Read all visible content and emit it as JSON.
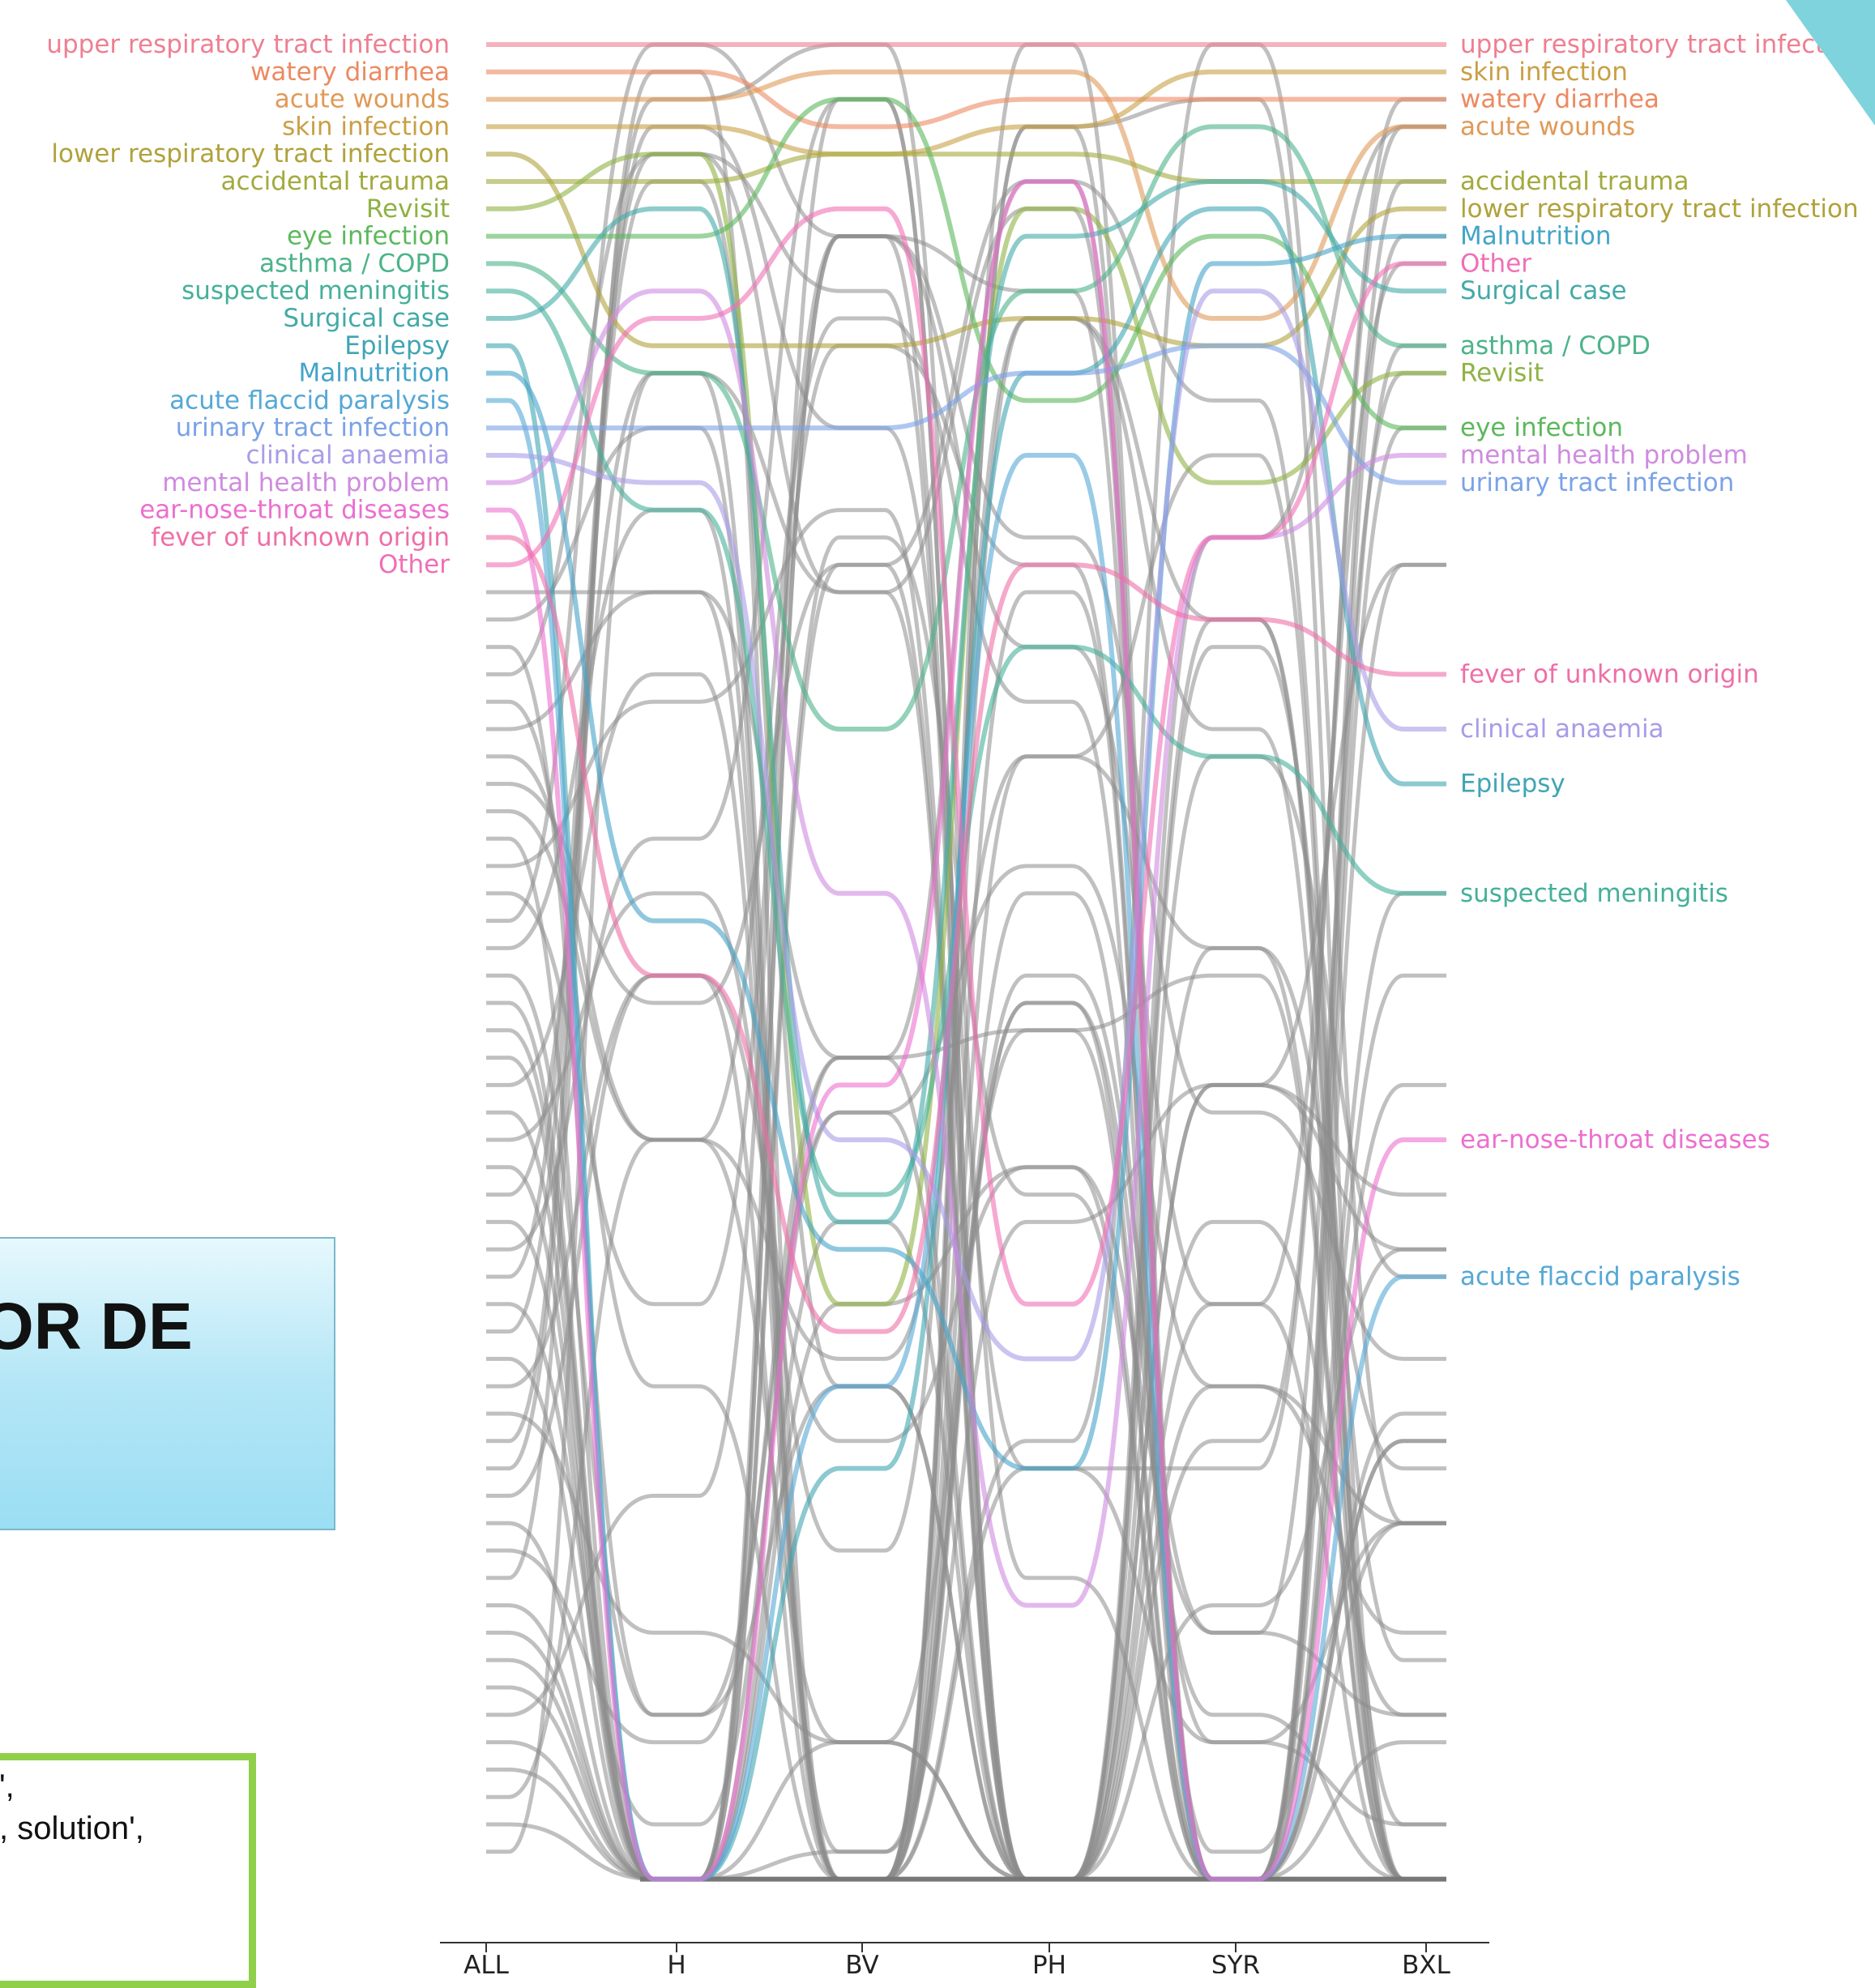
{
  "slide": {
    "box_text": "OR DE",
    "code_lines": [
      "',",
      ", solution',"
    ]
  },
  "colors": {
    "other": "#8c8c8c",
    "box_border": "#7ab8cc",
    "code_border": "#8fcf4a",
    "corner": "#7fd3dc"
  },
  "chart_data": {
    "type": "bump",
    "columns": [
      "ALL",
      "H",
      "BV",
      "PH",
      "SYR",
      "BXL"
    ],
    "max_rank": 67,
    "sink_rank": 68,
    "highlighted": [
      {
        "name": "upper respiratory tract infection",
        "color": "#ee7f92",
        "label_left": "upper respiratory tract infection",
        "label_right": "upper respiratory tract infection",
        "ranks": [
          1,
          1,
          1,
          1,
          1,
          1
        ]
      },
      {
        "name": "watery diarrhea",
        "color": "#ec8a62",
        "label_left": "watery diarrhea",
        "label_right": "watery diarrhea",
        "ranks": [
          2,
          2,
          4,
          3,
          3,
          3
        ]
      },
      {
        "name": "acute wounds",
        "color": "#e09a58",
        "label_left": "acute wounds",
        "label_right": "acute wounds",
        "ranks": [
          3,
          3,
          2,
          2,
          11,
          4
        ]
      },
      {
        "name": "skin infection",
        "color": "#c8a045",
        "label_left": "skin infection",
        "label_right": "skin infection",
        "ranks": [
          4,
          4,
          5,
          4,
          2,
          2
        ]
      },
      {
        "name": "lower respiratory tract infection",
        "color": "#b0a23c",
        "label_left": "lower respiratory tract infection",
        "label_right": "lower respiratory tract infection",
        "ranks": [
          5,
          12,
          12,
          11,
          12,
          7
        ]
      },
      {
        "name": "accidental trauma",
        "color": "#a3aa3e",
        "label_left": "accidental trauma",
        "label_right": "accidental trauma",
        "ranks": [
          6,
          6,
          5,
          5,
          6,
          6
        ]
      },
      {
        "name": "Revisit",
        "color": "#8fb243",
        "label_left": "Revisit",
        "label_right": "Revisit",
        "ranks": [
          7,
          5,
          47,
          7,
          17,
          13
        ]
      },
      {
        "name": "eye infection",
        "color": "#5cb85c",
        "label_left": "eye infection",
        "label_right": "eye infection",
        "ranks": [
          8,
          8,
          3,
          14,
          8,
          15
        ]
      },
      {
        "name": "asthma / COPD",
        "color": "#4db38a",
        "label_left": "asthma / COPD",
        "label_right": "asthma / COPD",
        "ranks": [
          9,
          13,
          26,
          10,
          4,
          12
        ]
      },
      {
        "name": "suspected meningitis",
        "color": "#45b09a",
        "label_left": "suspected meningitis",
        "label_right": "suspected meningitis",
        "ranks": [
          10,
          18,
          43,
          23,
          27,
          32
        ]
      },
      {
        "name": "Surgical case",
        "color": "#43aaa8",
        "label_left": "Surgical case",
        "label_right": "Surgical case",
        "ranks": [
          11,
          7,
          44,
          8,
          6,
          10
        ]
      },
      {
        "name": "Epilepsy",
        "color": "#40a5b3",
        "label_left": "Epilepsy",
        "label_right": "Epilepsy",
        "ranks": [
          12,
          68,
          53,
          13,
          7,
          28
        ]
      },
      {
        "name": "Malnutrition",
        "color": "#44a4c8",
        "label_left": "Malnutrition",
        "label_right": "Malnutrition",
        "ranks": [
          13,
          33,
          45,
          53,
          9,
          8
        ]
      },
      {
        "name": "acute flaccid paralysis",
        "color": "#55a8d6",
        "label_left": "acute flaccid paralysis",
        "label_right": "acute flaccid paralysis",
        "ranks": [
          14,
          68,
          50,
          16,
          68,
          46
        ]
      },
      {
        "name": "urinary tract infection",
        "color": "#7aa2e6",
        "label_left": "urinary tract infection",
        "label_right": "urinary tract infection",
        "ranks": [
          15,
          15,
          15,
          13,
          12,
          17
        ]
      },
      {
        "name": "clinical anaemia",
        "color": "#a89ce8",
        "label_left": "clinical anaemia",
        "label_right": "clinical anaemia",
        "ranks": [
          16,
          17,
          41,
          49,
          10,
          26
        ]
      },
      {
        "name": "mental health problem",
        "color": "#cf8be0",
        "label_left": "mental health problem",
        "label_right": "mental health problem",
        "ranks": [
          17,
          10,
          32,
          58,
          19,
          16
        ]
      },
      {
        "name": "ear-nose-throat diseases",
        "color": "#ec6fcf",
        "label_left": "ear-nose-throat diseases",
        "label_right": "ear-nose-throat diseases",
        "ranks": [
          18,
          68,
          39,
          6,
          68,
          41
        ]
      },
      {
        "name": "fever of unknown origin",
        "color": "#ee6fa7",
        "label_left": "fever of unknown origin",
        "label_right": "fever of unknown origin",
        "ranks": [
          19,
          35,
          48,
          20,
          22,
          24
        ]
      },
      {
        "name": "Other",
        "color": "#f06fb5",
        "label_left": "Other",
        "label_right": "Other",
        "ranks": [
          20,
          11,
          7,
          47,
          19,
          9
        ]
      }
    ]
  }
}
